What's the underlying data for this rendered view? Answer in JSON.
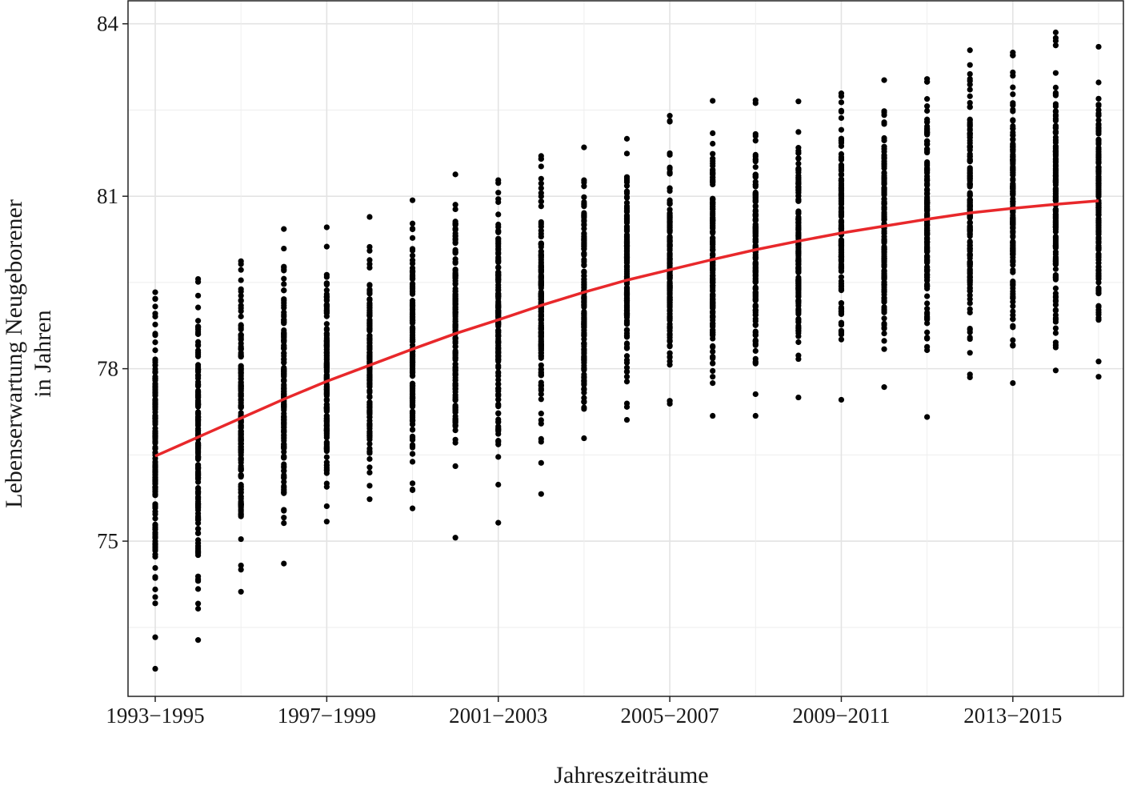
{
  "chart_data": {
    "type": "scatter",
    "title": "",
    "xlabel": "Jahreszeiträume",
    "ylabel": [
      "Lebenserwartung Neugeborener",
      "in Jahren"
    ],
    "ylim": [
      72.3,
      84.4
    ],
    "yticks": [
      75,
      78,
      81,
      84
    ],
    "grid": true,
    "legend": "none",
    "x_categories": [
      "1993−1995",
      "1994−1996",
      "1995−1997",
      "1996−1998",
      "1997−1999",
      "1998−2000",
      "1999−2001",
      "2000−2002",
      "2001−2003",
      "2002−2004",
      "2003−2005",
      "2004−2006",
      "2005−2007",
      "2006−2008",
      "2007−2009",
      "2008−2010",
      "2009−2011",
      "2010−2012",
      "2011−2013",
      "2012−2014",
      "2013−2015",
      "2014−2016",
      "2015−2017"
    ],
    "x_tick_labels": [
      "1993−1995",
      "1997−1999",
      "2001−2003",
      "2005−2007",
      "2009−2011",
      "2013−2015"
    ],
    "point_min": [
      72.78,
      73.28,
      74.12,
      74.61,
      75.34,
      75.73,
      75.57,
      75.06,
      75.32,
      75.82,
      76.79,
      77.11,
      77.39,
      77.18,
      77.18,
      77.5,
      77.46,
      77.68,
      77.16,
      77.85,
      77.75,
      77.97,
      77.86
    ],
    "point_max": [
      79.33,
      79.56,
      79.87,
      80.43,
      80.46,
      80.64,
      80.93,
      81.38,
      81.28,
      81.7,
      81.85,
      82.0,
      82.4,
      82.66,
      82.67,
      82.65,
      82.79,
      83.02,
      83.04,
      83.54,
      83.5,
      83.85,
      83.6
    ],
    "trend": {
      "type": "line",
      "color": "#e8282b",
      "values": [
        76.48,
        76.81,
        77.14,
        77.47,
        77.78,
        78.06,
        78.34,
        78.61,
        78.85,
        79.1,
        79.33,
        79.54,
        79.72,
        79.9,
        80.07,
        80.22,
        80.36,
        80.48,
        80.6,
        80.71,
        80.79,
        80.86,
        80.92
      ]
    },
    "point_color": "#000000"
  }
}
